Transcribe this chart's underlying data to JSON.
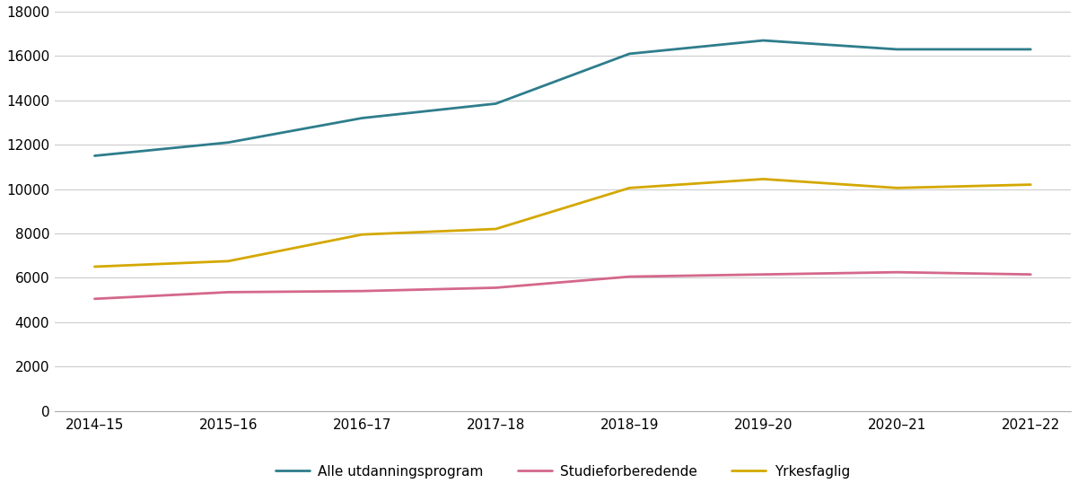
{
  "years": [
    "2014–15",
    "2015–16",
    "2016–17",
    "2017–18",
    "2018–19",
    "2019–20",
    "2020–21",
    "2021–22"
  ],
  "alle_utdanningsprogram": [
    11500,
    12100,
    13200,
    13850,
    16100,
    16700,
    16300,
    16300
  ],
  "studieforberedende": [
    5050,
    5350,
    5400,
    5550,
    6050,
    6150,
    6250,
    6150
  ],
  "yrkesfaglig": [
    6500,
    6750,
    7950,
    8200,
    10050,
    10450,
    10050,
    10200
  ],
  "colors": {
    "alle": "#2e7d8c",
    "stud": "#d4688a",
    "yrkes": "#d4a800"
  },
  "ylim": [
    0,
    18000
  ],
  "yticks": [
    0,
    2000,
    4000,
    6000,
    8000,
    10000,
    12000,
    14000,
    16000,
    18000
  ],
  "ytick_labels": [
    "0",
    "2000",
    "4000",
    "6000",
    "8000",
    "10000",
    "12000",
    "14000",
    "16000",
    "18000"
  ],
  "legend_labels": [
    "Alle utdanningsprogram",
    "Studieforberedende",
    "Yrkesfaglig"
  ],
  "background_color": "#ffffff",
  "line_width": 2.0
}
